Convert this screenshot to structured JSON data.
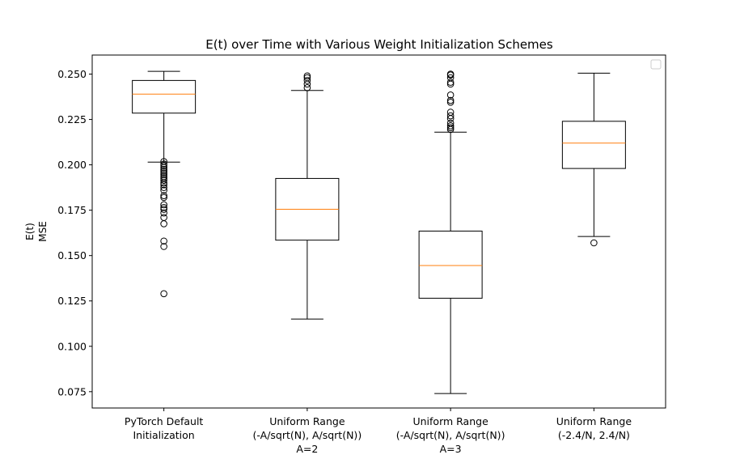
{
  "chart_data": {
    "type": "box",
    "title": "E(t) over Time with Various Weight Initialization Schemes",
    "ylabel_lines": [
      "E(t)",
      "MSE"
    ],
    "xlabel": "",
    "ylim": [
      0.066,
      0.2605
    ],
    "yticks": [
      0.075,
      0.1,
      0.125,
      0.15,
      0.175,
      0.2,
      0.225,
      0.25
    ],
    "ytick_labels": [
      "0.075",
      "0.100",
      "0.125",
      "0.150",
      "0.175",
      "0.200",
      "0.225",
      "0.250"
    ],
    "legend": {
      "placement": "upper-right",
      "entries": []
    },
    "colors": {
      "box": "#000000",
      "median": "#ff7f0e"
    },
    "categories": [
      {
        "label_lines": [
          "PyTorch Default",
          "Initialization"
        ],
        "whisker_low": 0.2015,
        "q1": 0.2285,
        "median": 0.239,
        "q3": 0.2465,
        "whisker_high": 0.2515,
        "fliers": [
          0.2018,
          0.2005,
          0.1995,
          0.1985,
          0.1975,
          0.1965,
          0.1955,
          0.1945,
          0.1935,
          0.1925,
          0.1915,
          0.19,
          0.189,
          0.1875,
          0.186,
          0.183,
          0.182,
          0.178,
          0.1765,
          0.1755,
          0.1735,
          0.171,
          0.1675,
          0.158,
          0.155,
          0.129
        ]
      },
      {
        "label_lines": [
          "Uniform Range",
          "(-A/sqrt(N), A/sqrt(N))",
          "A=2"
        ],
        "whisker_low": 0.115,
        "q1": 0.1585,
        "median": 0.1755,
        "q3": 0.1925,
        "whisker_high": 0.241,
        "fliers": [
          0.2425,
          0.2445,
          0.2465,
          0.248,
          0.249
        ]
      },
      {
        "label_lines": [
          "Uniform Range",
          "(-A/sqrt(N), A/sqrt(N))",
          "A=3"
        ],
        "whisker_low": 0.074,
        "q1": 0.1265,
        "median": 0.1445,
        "q3": 0.1635,
        "whisker_high": 0.218,
        "fliers": [
          0.2195,
          0.2205,
          0.2215,
          0.223,
          0.2255,
          0.227,
          0.229,
          0.2345,
          0.2355,
          0.2385,
          0.2445,
          0.2455,
          0.248,
          0.2495,
          0.25
        ]
      },
      {
        "label_lines": [
          "Uniform Range",
          "(-2.4/N, 2.4/N)"
        ],
        "whisker_low": 0.1605,
        "q1": 0.198,
        "median": 0.212,
        "q3": 0.224,
        "whisker_high": 0.2505,
        "fliers": [
          0.157
        ]
      }
    ]
  }
}
